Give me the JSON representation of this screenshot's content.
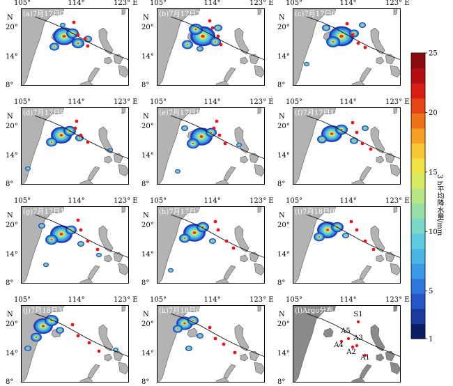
{
  "chart_data": {
    "type": "heatmap",
    "panels": [
      {
        "label": "(a)7月17日0时"
      },
      {
        "label": "(b)7月17日3时"
      },
      {
        "label": "(c)7月17日6时"
      },
      {
        "label": "(d)7月17日9时"
      },
      {
        "label": "(e)7月17日12时"
      },
      {
        "label": "(f)7月17日15时"
      },
      {
        "label": "(g)7月17日18时"
      },
      {
        "label": "(h)7月17日21时"
      },
      {
        "label": "(i)7月18日0时"
      },
      {
        "label": "(j)7月18日3时"
      },
      {
        "label": "(k)7月18日6时"
      },
      {
        "label": "(l)Argo分布"
      }
    ],
    "x_ticks": [
      "105°",
      "114°",
      "123° E"
    ],
    "y_ticks": [
      "20°",
      "14°",
      "8°"
    ],
    "y_axis_letter": "N",
    "argo_floats": [
      "S1",
      "A5",
      "A3",
      "A4",
      "A2",
      "A1"
    ],
    "colorbar": {
      "title": "3 h平均降水量/mm",
      "min": 1,
      "max": 25,
      "ticks": [
        1,
        5,
        10,
        15,
        20,
        25
      ]
    },
    "xlim": [
      105,
      123
    ],
    "ylim": [
      8,
      22
    ]
  }
}
